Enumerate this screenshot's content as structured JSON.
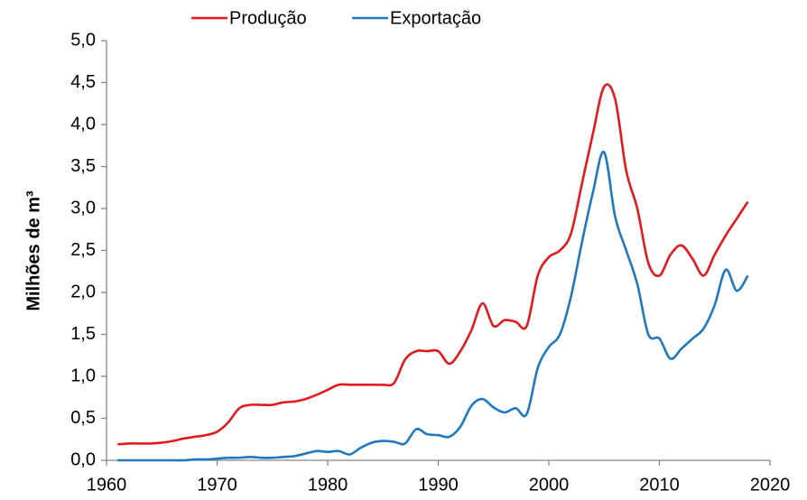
{
  "chart_data": {
    "type": "line",
    "ylabel": "Milhões de m³",
    "x": [
      1961,
      1962,
      1963,
      1964,
      1965,
      1966,
      1967,
      1968,
      1969,
      1970,
      1971,
      1972,
      1973,
      1974,
      1975,
      1976,
      1977,
      1978,
      1979,
      1980,
      1981,
      1982,
      1983,
      1984,
      1985,
      1986,
      1987,
      1988,
      1989,
      1990,
      1991,
      1992,
      1993,
      1994,
      1995,
      1996,
      1997,
      1998,
      1999,
      2000,
      2001,
      2002,
      2003,
      2004,
      2005,
      2006,
      2007,
      2008,
      2009,
      2010,
      2011,
      2012,
      2013,
      2014,
      2015,
      2016,
      2017,
      2018
    ],
    "series": [
      {
        "name": "Produção",
        "color": "#e3191c",
        "values": [
          0.19,
          0.2,
          0.2,
          0.2,
          0.21,
          0.23,
          0.26,
          0.28,
          0.3,
          0.34,
          0.45,
          0.62,
          0.66,
          0.66,
          0.66,
          0.69,
          0.7,
          0.73,
          0.78,
          0.84,
          0.9,
          0.9,
          0.9,
          0.9,
          0.9,
          0.92,
          1.2,
          1.3,
          1.3,
          1.3,
          1.15,
          1.3,
          1.55,
          1.87,
          1.6,
          1.67,
          1.65,
          1.6,
          2.2,
          2.42,
          2.5,
          2.7,
          3.3,
          3.9,
          4.45,
          4.3,
          3.45,
          3.0,
          2.35,
          2.2,
          2.45,
          2.56,
          2.4,
          2.2,
          2.45,
          2.68,
          2.88,
          3.08
        ]
      },
      {
        "name": "Exportação",
        "color": "#1f78c1",
        "values": [
          0,
          0,
          0,
          0,
          0,
          0,
          0,
          0.01,
          0.01,
          0.02,
          0.03,
          0.03,
          0.04,
          0.03,
          0.03,
          0.04,
          0.05,
          0.08,
          0.11,
          0.1,
          0.11,
          0.07,
          0.15,
          0.21,
          0.23,
          0.22,
          0.2,
          0.37,
          0.31,
          0.3,
          0.28,
          0.4,
          0.65,
          0.73,
          0.63,
          0.57,
          0.62,
          0.55,
          1.1,
          1.35,
          1.5,
          1.95,
          2.6,
          3.2,
          3.67,
          2.9,
          2.5,
          2.1,
          1.5,
          1.45,
          1.21,
          1.33,
          1.45,
          1.57,
          1.85,
          2.27,
          2.02,
          2.2
        ]
      }
    ],
    "xlim": [
      1960,
      2020
    ],
    "xticks": [
      1960,
      1970,
      1980,
      1990,
      2000,
      2010,
      2020
    ],
    "ylim": [
      0,
      5
    ],
    "yticks": [
      {
        "value": 0,
        "label": "0,0"
      },
      {
        "value": 0.5,
        "label": "0,5"
      },
      {
        "value": 1,
        "label": "1,0"
      },
      {
        "value": 1.5,
        "label": "1,5"
      },
      {
        "value": 2,
        "label": "2,0"
      },
      {
        "value": 2.5,
        "label": "2,5"
      },
      {
        "value": 3,
        "label": "3,0"
      },
      {
        "value": 3.5,
        "label": "3,5"
      },
      {
        "value": 4,
        "label": "4,0"
      },
      {
        "value": 4.5,
        "label": "4,5"
      },
      {
        "value": 5,
        "label": "5,0"
      }
    ],
    "grid": false,
    "legend": "top"
  }
}
